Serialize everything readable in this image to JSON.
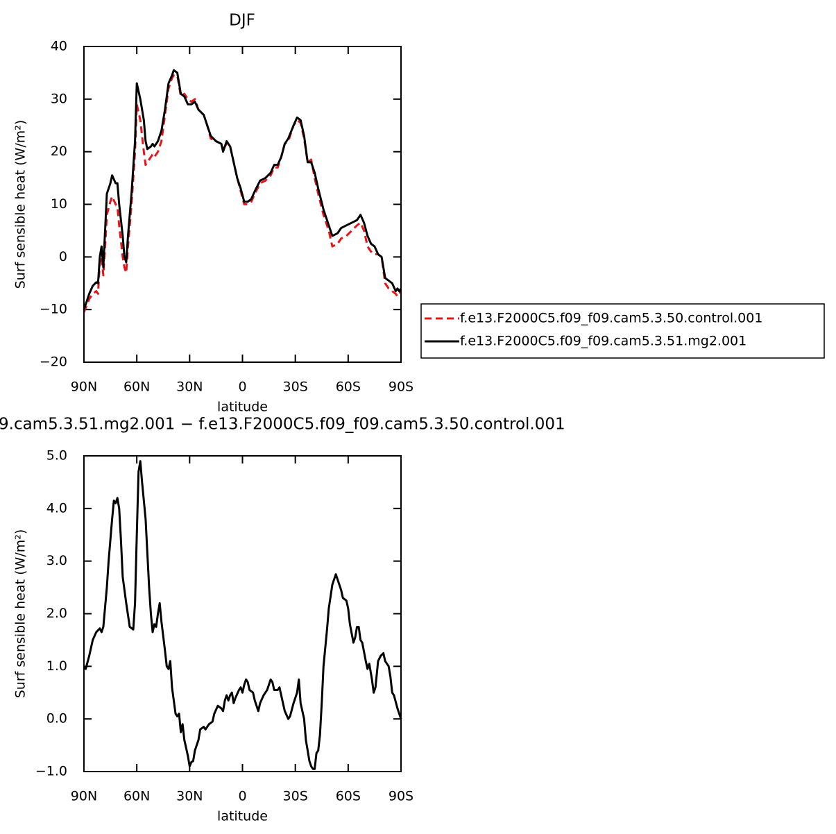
{
  "chart_data": [
    {
      "type": "line",
      "title": "DJF",
      "xlabel": "latitude",
      "ylabel": "Surf sensible heat (W/m²)",
      "xlim": [
        90,
        -90
      ],
      "xticks": [
        {
          "value": 90,
          "label": "90N"
        },
        {
          "value": 60,
          "label": "60N"
        },
        {
          "value": 30,
          "label": "30N"
        },
        0,
        {
          "value": -30,
          "label": "30S"
        },
        {
          "value": -60,
          "label": "60S"
        },
        {
          "value": -90,
          "label": "90S"
        }
      ],
      "ylim": [
        -20,
        40
      ],
      "yticks": [
        {
          "value": -20,
          "label": "−20"
        },
        {
          "value": -10,
          "label": "−10"
        },
        0,
        10,
        20,
        30,
        40
      ],
      "legend": "outside-right",
      "x": [
        90,
        87,
        85,
        83,
        82,
        81,
        80,
        79,
        78,
        77,
        75,
        74,
        72,
        71,
        70,
        68,
        67,
        66,
        65,
        63,
        61,
        60,
        58,
        56,
        55,
        54,
        52,
        51,
        50,
        48,
        46,
        44,
        42,
        40,
        39,
        37,
        35,
        33,
        31,
        29,
        27,
        25,
        22,
        20,
        18,
        15,
        12,
        11,
        9,
        7,
        5,
        3,
        1,
        -1,
        -3,
        -5,
        -7,
        -10,
        -13,
        -16,
        -18,
        -20,
        -22,
        -24,
        -26,
        -29,
        -31,
        -33,
        -35,
        -37,
        -39,
        -41,
        -43,
        -46,
        -49,
        -51,
        -54,
        -56,
        -59,
        -62,
        -65,
        -67,
        -69,
        -71,
        -73,
        -75,
        -77,
        -79,
        -81,
        -83,
        -85,
        -87,
        -88,
        -89,
        -90
      ],
      "series": [
        {
          "name": "f.e13.F2000C5.f09_f09.cam5.3.50.control.001",
          "color": "#e8141a",
          "dash": true,
          "values": [
            -10.5,
            -8,
            -7,
            -6.5,
            -7,
            -1,
            0,
            -3.5,
            2,
            8,
            10.5,
            11.5,
            10,
            9.5,
            6,
            0,
            -2,
            -3,
            2,
            10,
            20,
            29,
            26,
            20,
            17.5,
            18,
            19,
            19.5,
            19,
            20,
            22,
            27,
            32,
            34,
            34.5,
            34.5,
            30.5,
            31,
            30,
            29.5,
            30,
            28,
            27,
            25,
            22.5,
            22,
            21.5,
            20.5,
            21.5,
            21,
            18,
            15,
            12.5,
            10,
            10,
            10.5,
            12,
            14,
            14.5,
            15.5,
            17,
            17,
            19,
            21.5,
            22,
            25,
            26,
            25.5,
            22.5,
            18,
            18.5,
            15,
            12,
            8,
            5,
            2,
            2.5,
            3.5,
            4,
            5,
            6,
            6.5,
            5,
            2,
            1,
            0.5,
            0.5,
            0,
            -5,
            -6,
            -6.5,
            -7,
            -7.5,
            -7,
            -6.5
          ]
        },
        {
          "name": "f.e13.F2000C5.f09_f09.cam5.3.51.mg2.001",
          "color": "#000000",
          "dash": false,
          "values": [
            -10,
            -7,
            -5.5,
            -4.8,
            -5,
            0,
            2,
            -2,
            5,
            12,
            14,
            15.5,
            14,
            14,
            10,
            4,
            0,
            -1,
            4,
            12,
            22,
            33,
            30,
            26,
            22,
            20.5,
            21,
            21.5,
            21,
            22,
            24,
            28,
            33,
            34.5,
            35.5,
            35,
            31,
            30.5,
            29,
            29,
            29.5,
            28,
            27,
            25,
            23,
            22,
            21.5,
            20,
            22,
            21,
            18,
            15,
            13,
            10.5,
            10.5,
            11,
            12.5,
            14.5,
            15,
            16,
            17.5,
            17.5,
            19,
            21.5,
            22.5,
            25,
            26.5,
            26,
            23,
            18,
            18,
            16,
            13,
            9,
            6,
            4,
            4.5,
            5.5,
            6,
            6.5,
            7,
            8,
            6.5,
            4,
            2.5,
            2,
            0.5,
            0,
            -4,
            -4.5,
            -5,
            -6.5,
            -6,
            -6.5,
            -6
          ]
        }
      ]
    },
    {
      "type": "line",
      "title": "9.cam5.3.51.mg2.001 − f.e13.F2000C5.f09_f09.cam5.3.50.control.001",
      "xlabel": "latitude",
      "ylabel": "Surf sensible heat (W/m²)",
      "xlim": [
        90,
        -90
      ],
      "xticks": [
        {
          "value": 90,
          "label": "90N"
        },
        {
          "value": 60,
          "label": "60N"
        },
        {
          "value": 30,
          "label": "30N"
        },
        0,
        {
          "value": -30,
          "label": "30S"
        },
        {
          "value": -60,
          "label": "60S"
        },
        {
          "value": -90,
          "label": "90S"
        }
      ],
      "ylim": [
        -1,
        5
      ],
      "yticks": [
        {
          "value": -1,
          "label": "−1.0"
        },
        {
          "value": 0,
          "label": "0.0"
        },
        {
          "value": 1,
          "label": "1.0"
        },
        {
          "value": 2,
          "label": "2.0"
        },
        {
          "value": 3,
          "label": "3.0"
        },
        {
          "value": 4,
          "label": "4.0"
        },
        {
          "value": 5,
          "label": "5.0"
        }
      ],
      "x": [
        90,
        89,
        87,
        85,
        83,
        81,
        80,
        79,
        77,
        76,
        74,
        73,
        72,
        71,
        70,
        69,
        68,
        66,
        64,
        62,
        61,
        60,
        59,
        58,
        57,
        55,
        53,
        52,
        51,
        50,
        49,
        48,
        47,
        46,
        44,
        43,
        42,
        41,
        40,
        38,
        37,
        36,
        35,
        34,
        33,
        31,
        30,
        29,
        28,
        27,
        25,
        24,
        22,
        21,
        19,
        17,
        16,
        14,
        12,
        11,
        10,
        9,
        8,
        7,
        6,
        5,
        4,
        2,
        1,
        0,
        -1,
        -2,
        -3,
        -4,
        -6,
        -7,
        -8,
        -9,
        -10,
        -12,
        -14,
        -16,
        -17,
        -18,
        -20,
        -21,
        -22,
        -23,
        -24,
        -26,
        -27,
        -29,
        -31,
        -32,
        -33,
        -35,
        -36,
        -37,
        -38,
        -39,
        -40,
        -41,
        -42,
        -43,
        -44,
        -45,
        -46,
        -48,
        -49,
        -51,
        -52,
        -53,
        -54,
        -56,
        -57,
        -59,
        -60,
        -61,
        -63,
        -64,
        -65,
        -66,
        -67,
        -68,
        -70,
        -71,
        -72,
        -73.5,
        -74.5,
        -75.5,
        -77,
        -78.5,
        -80,
        -81,
        -82,
        -83,
        -84,
        -85,
        -86,
        -88,
        -90
      ],
      "series": [
        {
          "color": "#000000",
          "dash": false,
          "values": [
            1.0,
            0.95,
            1.2,
            1.5,
            1.65,
            1.72,
            1.65,
            1.75,
            2.5,
            3.0,
            3.8,
            4.15,
            4.1,
            4.2,
            4.0,
            3.4,
            2.7,
            2.2,
            1.75,
            1.7,
            2.2,
            3.5,
            4.7,
            4.9,
            4.5,
            3.8,
            2.5,
            2.0,
            1.65,
            1.8,
            1.75,
            2.0,
            2.2,
            1.85,
            1.3,
            1.0,
            0.95,
            1.1,
            0.6,
            0.1,
            0.05,
            0.1,
            -0.25,
            -0.1,
            -0.4,
            -0.7,
            -0.9,
            -0.82,
            -0.8,
            -0.6,
            -0.4,
            -0.2,
            -0.15,
            -0.2,
            -0.1,
            -0.05,
            0.1,
            0.25,
            0.2,
            0.15,
            0.35,
            0.45,
            0.35,
            0.45,
            0.5,
            0.3,
            0.4,
            0.55,
            0.6,
            0.5,
            0.65,
            0.75,
            0.7,
            0.55,
            0.5,
            0.35,
            0.25,
            0.15,
            0.3,
            0.45,
            0.55,
            0.75,
            0.7,
            0.55,
            0.55,
            0.6,
            0.45,
            0.3,
            0.15,
            0.0,
            0.05,
            0.3,
            0.5,
            0.75,
            0.3,
            0.0,
            -0.4,
            -0.6,
            -0.8,
            -0.9,
            -0.95,
            -0.95,
            -0.65,
            -0.6,
            -0.3,
            0.3,
            1.0,
            1.7,
            2.1,
            2.55,
            2.65,
            2.75,
            2.65,
            2.45,
            2.3,
            2.25,
            2.1,
            1.8,
            1.45,
            1.55,
            1.75,
            1.75,
            1.5,
            1.45,
            1.1,
            0.95,
            1.05,
            0.75,
            0.5,
            0.6,
            1.1,
            1.2,
            1.25,
            1.1,
            1.05,
            1.0,
            0.8,
            0.5,
            0.45,
            0.2,
            0.0
          ]
        }
      ]
    }
  ]
}
